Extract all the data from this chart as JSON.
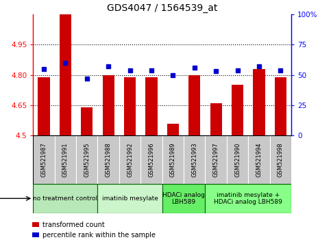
{
  "title": "GDS4047 / 1564539_at",
  "samples": [
    "GSM521987",
    "GSM521991",
    "GSM521995",
    "GSM521988",
    "GSM521992",
    "GSM521996",
    "GSM521989",
    "GSM521993",
    "GSM521997",
    "GSM521990",
    "GSM521994",
    "GSM521998"
  ],
  "bar_values": [
    4.79,
    5.1,
    4.64,
    4.8,
    4.79,
    4.79,
    4.56,
    4.8,
    4.66,
    4.75,
    4.83,
    4.79
  ],
  "dot_values": [
    55,
    60,
    47,
    57,
    54,
    54,
    50,
    56,
    53,
    54,
    57,
    54
  ],
  "ylim": [
    4.5,
    5.1
  ],
  "yticks": [
    4.5,
    4.65,
    4.8,
    4.95
  ],
  "ytick_labels": [
    "4.5",
    "4.65",
    "4.80",
    "4.95"
  ],
  "y2lim": [
    0,
    100
  ],
  "y2ticks": [
    0,
    25,
    50,
    75,
    100
  ],
  "y2tick_labels": [
    "0",
    "25",
    "50",
    "75",
    "100%"
  ],
  "bar_color": "#cc0000",
  "dot_color": "#0000cc",
  "grid_color": "#000000",
  "agent_groups": [
    {
      "label": "no treatment control",
      "start": 0,
      "end": 3,
      "color": "#b8e8b8"
    },
    {
      "label": "imatinib mesylate",
      "start": 3,
      "end": 6,
      "color": "#ccf5cc"
    },
    {
      "label": "HDACi analog\nLBH589",
      "start": 6,
      "end": 8,
      "color": "#66ee66"
    },
    {
      "label": "imatinib mesylate +\nHDACi analog LBH589",
      "start": 8,
      "end": 12,
      "color": "#88ff88"
    }
  ],
  "sample_box_color": "#c8c8c8",
  "legend_bar_label": "transformed count",
  "legend_dot_label": "percentile rank within the sample",
  "plot_bg": "#ffffff",
  "title_fontsize": 10,
  "tick_fontsize": 7.5,
  "sample_fontsize": 6,
  "agent_fontsize": 6.5,
  "legend_fontsize": 7
}
